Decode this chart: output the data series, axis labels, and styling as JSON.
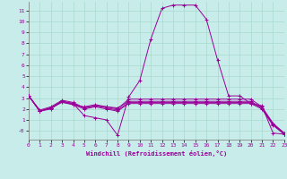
{
  "xlabel": "Windchill (Refroidissement éolien,°C)",
  "ylabel": "",
  "background_color": "#c8ecea",
  "grid_color": "#a8d8cc",
  "line_color": "#990099",
  "xmin": 0,
  "xmax": 23,
  "ymin": -0.8,
  "ymax": 11.8,
  "yticks": [
    0,
    1,
    2,
    3,
    4,
    5,
    6,
    7,
    8,
    9,
    10,
    11
  ],
  "ytick_labels": [
    "-0",
    "1",
    "2",
    "3",
    "4",
    "5",
    "6",
    "7",
    "8",
    "9",
    "10",
    "11"
  ],
  "xticks": [
    0,
    1,
    2,
    3,
    4,
    5,
    6,
    7,
    8,
    9,
    10,
    11,
    12,
    13,
    14,
    15,
    16,
    17,
    18,
    19,
    20,
    21,
    22,
    23
  ],
  "lines": [
    [
      3.2,
      1.8,
      2.0,
      2.7,
      2.5,
      1.4,
      1.2,
      1.0,
      -0.4,
      3.1,
      4.6,
      8.4,
      11.2,
      11.5,
      11.5,
      11.5,
      10.2,
      6.5,
      3.2,
      3.2,
      2.5,
      2.3,
      -0.2,
      -0.3
    ],
    [
      3.2,
      1.9,
      2.2,
      2.8,
      2.6,
      2.1,
      2.3,
      2.2,
      2.0,
      2.9,
      2.9,
      2.9,
      2.9,
      2.9,
      2.9,
      2.9,
      2.9,
      2.9,
      2.9,
      2.9,
      2.9,
      2.2,
      0.7,
      -0.2
    ],
    [
      3.2,
      1.8,
      2.1,
      2.6,
      2.4,
      2.0,
      2.2,
      2.0,
      1.8,
      2.5,
      2.5,
      2.5,
      2.5,
      2.5,
      2.5,
      2.5,
      2.5,
      2.5,
      2.5,
      2.5,
      2.5,
      2.0,
      0.5,
      -0.3
    ],
    [
      3.2,
      1.8,
      2.1,
      2.7,
      2.4,
      2.2,
      2.4,
      2.2,
      2.1,
      2.7,
      2.7,
      2.7,
      2.7,
      2.7,
      2.7,
      2.7,
      2.7,
      2.7,
      2.7,
      2.7,
      2.7,
      2.1,
      0.6,
      -0.3
    ],
    [
      3.2,
      1.8,
      2.1,
      2.7,
      2.5,
      2.1,
      2.3,
      2.1,
      1.9,
      2.6,
      2.6,
      2.6,
      2.6,
      2.6,
      2.6,
      2.6,
      2.6,
      2.6,
      2.6,
      2.6,
      2.6,
      2.1,
      0.6,
      -0.2
    ]
  ]
}
